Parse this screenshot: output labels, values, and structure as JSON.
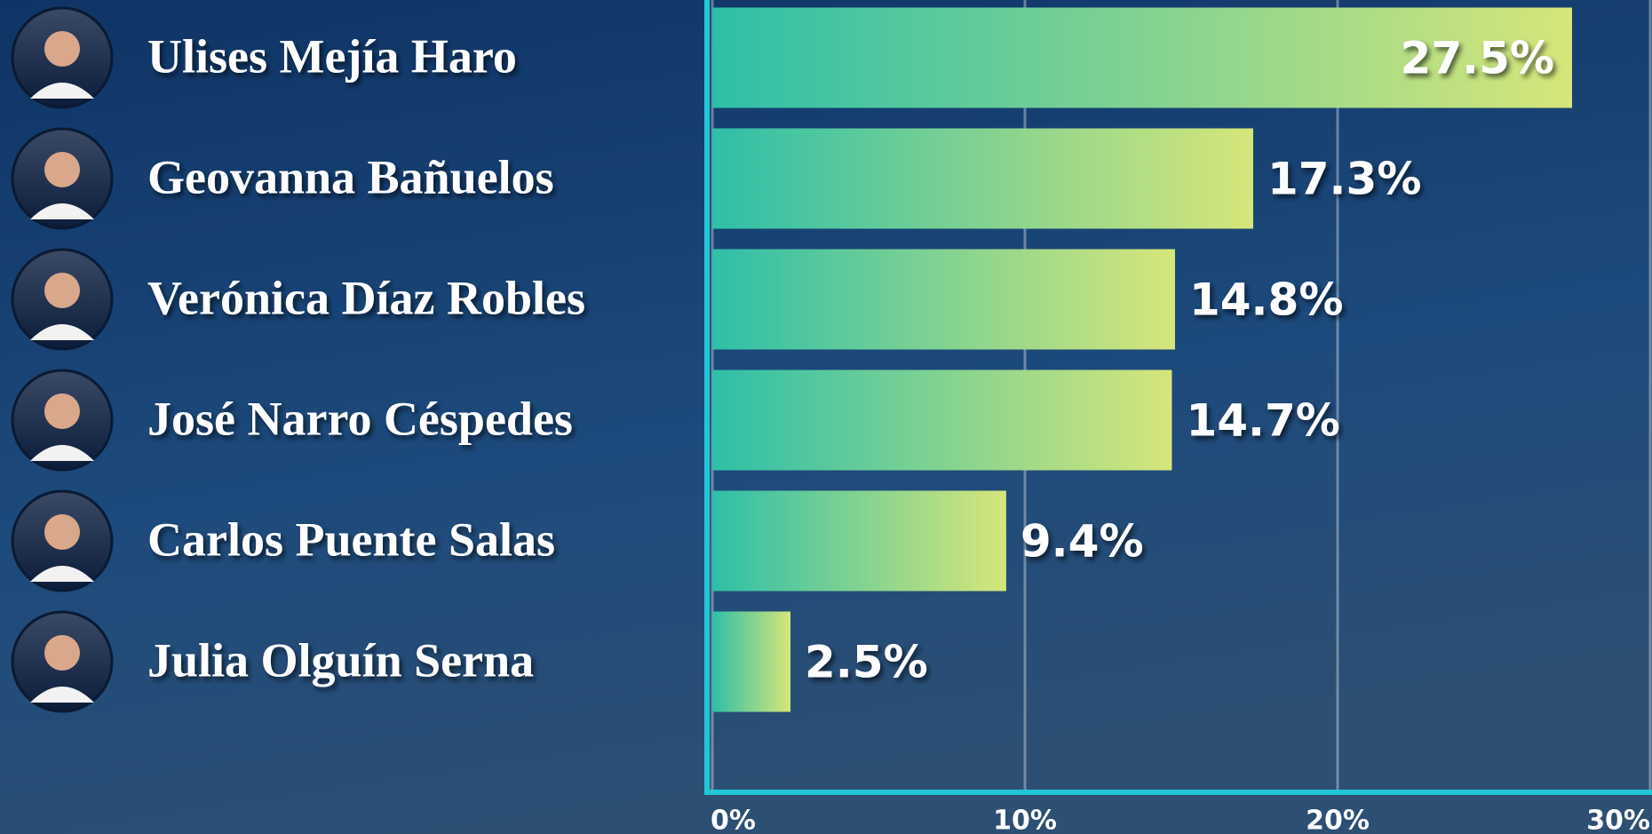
{
  "chart_data": {
    "type": "bar",
    "orientation": "horizontal",
    "categories": [
      "Ulises Mejía Haro",
      "Geovanna Bañuelos",
      "Verónica Díaz Robles",
      "José Narro Céspedes",
      "Carlos Puente Salas",
      "Julia Olguín Serna"
    ],
    "values": [
      27.5,
      17.3,
      14.8,
      14.7,
      9.4,
      2.5
    ],
    "value_labels": [
      "27.5%",
      "17.3%",
      "14.8%",
      "14.7%",
      "9.4%",
      "2.5%"
    ],
    "colors": [
      "#2ebfa8",
      "#d6e67a"
    ],
    "xlim": [
      0,
      30
    ],
    "xticks": [
      {
        "value": 0,
        "label": "0%"
      },
      {
        "value": 10,
        "label": "10%"
      },
      {
        "value": 20,
        "label": "20%"
      },
      {
        "value": 30,
        "label": "30%"
      }
    ],
    "grid": true
  }
}
